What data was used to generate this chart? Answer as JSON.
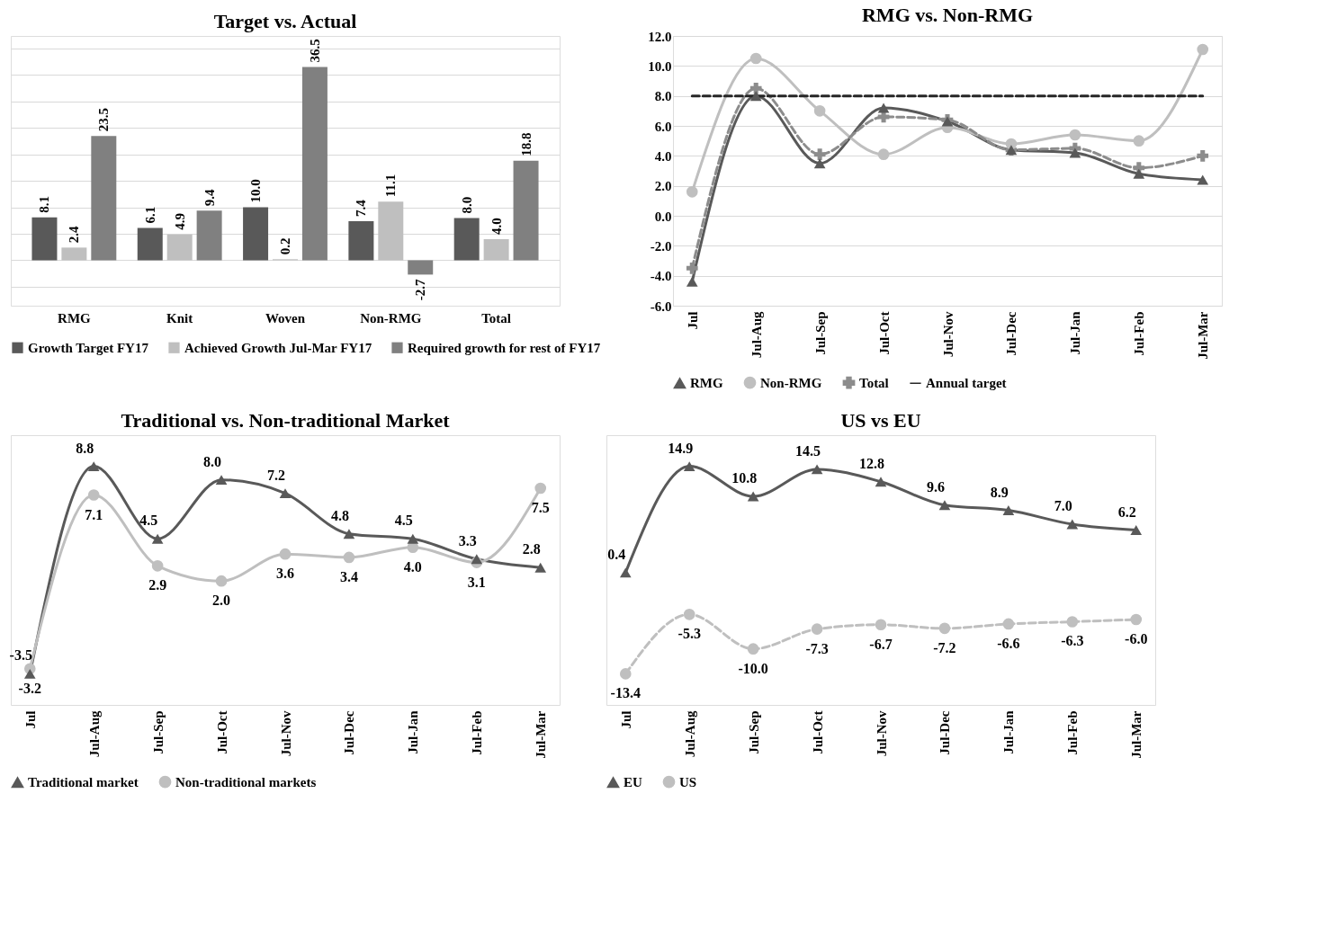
{
  "chart_data": [
    {
      "type": "bar",
      "title": "Target vs. Actual",
      "categories": [
        "RMG",
        "Knit",
        "Woven",
        "Non-RMG",
        "Total"
      ],
      "grid": "y",
      "tick_labels": "x",
      "legend": "bottom",
      "series": [
        {
          "name": "Growth Target FY17",
          "color": "#595959",
          "values": [
            8.1,
            6.1,
            10.0,
            7.4,
            8.0
          ],
          "value_labels": [
            "8.1",
            "6.1",
            "10.0",
            "7.4",
            "8.0"
          ]
        },
        {
          "name": "Achieved Growth Jul-Mar FY17",
          "color": "#bfbfbf",
          "values": [
            2.4,
            4.9,
            0.2,
            11.1,
            4.0
          ],
          "value_labels": [
            "2.4",
            "4.9",
            "0.2",
            "11.1",
            "4.0"
          ]
        },
        {
          "name": "Required growth for rest of FY17",
          "color": "#808080",
          "values": [
            23.5,
            9.4,
            36.5,
            -2.7,
            18.8
          ],
          "value_labels": [
            "23.5",
            "9.4",
            "36.5",
            "-2.7",
            "18.8"
          ]
        }
      ]
    },
    {
      "type": "line",
      "title": "RMG vs. Non-RMG",
      "categories": [
        "Jul",
        "Jul-Aug",
        "Jul-Sep",
        "Jul-Oct",
        "Jul-Nov",
        "Jul-Dec",
        "Jul-Jan",
        "Jul-Feb",
        "Jul-Mar"
      ],
      "grid": "y",
      "legend": "bottom",
      "ylim": [
        -6,
        12
      ],
      "yticks": [
        {
          "value": -6,
          "label": "-6.0"
        },
        {
          "value": -4,
          "label": "-4.0"
        },
        {
          "value": -2,
          "label": "-2.0"
        },
        {
          "value": 0,
          "label": "0.0"
        },
        {
          "value": 2,
          "label": "2.0"
        },
        {
          "value": 4,
          "label": "4.0"
        },
        {
          "value": 6,
          "label": "6.0"
        },
        {
          "value": 8,
          "label": "8.0"
        },
        {
          "value": 10,
          "label": "10.0"
        },
        {
          "value": 12,
          "label": "12.0"
        }
      ],
      "series": [
        {
          "name": "RMG",
          "color": "#595959",
          "marker": "triangle",
          "line_style": "solid",
          "values": [
            -4.4,
            8.0,
            3.5,
            7.2,
            6.3,
            4.4,
            4.2,
            2.8,
            2.4
          ]
        },
        {
          "name": "Non-RMG",
          "color": "#bfbfbf",
          "marker": "circle",
          "line_style": "solid",
          "values": [
            1.6,
            10.5,
            7.0,
            4.1,
            5.9,
            4.8,
            5.4,
            5.0,
            11.1
          ]
        },
        {
          "name": "Total",
          "color": "#8c8c8c",
          "marker": "cross",
          "line_style": "dashed",
          "values": [
            -3.5,
            8.5,
            4.1,
            6.6,
            6.4,
            4.4,
            4.5,
            3.2,
            4.0
          ]
        },
        {
          "name": "Annual target",
          "color": "#262626",
          "marker": "none",
          "line_style": "dashed",
          "values": [
            8,
            8,
            8,
            8,
            8,
            8,
            8,
            8,
            8
          ]
        }
      ]
    },
    {
      "type": "line",
      "title": "Traditional vs. Non-traditional Market",
      "categories": [
        "Jul",
        "Jul-Aug",
        "Jul-Sep",
        "Jul-Oct",
        "Jul-Nov",
        "Jul-Dec",
        "Jul-Jan",
        "Jul-Feb",
        "Jul-Mar"
      ],
      "tick_labels": "x",
      "legend": "bottom",
      "series": [
        {
          "name": "Traditional market",
          "color": "#595959",
          "marker": "triangle",
          "line_style": "solid",
          "values": [
            -3.5,
            8.8,
            4.5,
            8.0,
            7.2,
            4.8,
            4.5,
            3.3,
            2.8
          ],
          "value_labels": [
            "-3.5",
            "8.8",
            "4.5",
            "8.0",
            "7.2",
            "4.8",
            "4.5",
            "3.3",
            "2.8"
          ]
        },
        {
          "name": "Non-traditional markets",
          "color": "#bfbfbf",
          "marker": "circle",
          "line_style": "solid",
          "values": [
            -3.2,
            7.1,
            2.9,
            2.0,
            3.6,
            3.4,
            4.0,
            3.1,
            7.5
          ],
          "value_labels": [
            "-3.2",
            "7.1",
            "2.9",
            "2.0",
            "3.6",
            "3.4",
            "4.0",
            "3.1",
            "7.5"
          ]
        }
      ]
    },
    {
      "type": "line",
      "title": "US vs EU",
      "categories": [
        "Jul",
        "Jul-Aug",
        "Jul-Sep",
        "Jul-Oct",
        "Jul-Nov",
        "Jul-Dec",
        "Jul-Jan",
        "Jul-Feb",
        "Jul-Mar"
      ],
      "tick_labels": "x",
      "legend": "bottom",
      "series": [
        {
          "name": "EU",
          "color": "#595959",
          "marker": "triangle",
          "line_style": "solid",
          "values": [
            0.4,
            14.9,
            10.8,
            14.5,
            12.8,
            9.6,
            8.9,
            7.0,
            6.2
          ],
          "value_labels": [
            "0.4",
            "14.9",
            "10.8",
            "14.5",
            "12.8",
            "9.6",
            "8.9",
            "7.0",
            "6.2"
          ]
        },
        {
          "name": "US",
          "color": "#bfbfbf",
          "marker": "circle",
          "line_style": "dashed",
          "values": [
            -13.4,
            -5.3,
            -10.0,
            -7.3,
            -6.7,
            -7.2,
            -6.6,
            -6.3,
            -6.0
          ],
          "value_labels": [
            "-13.4",
            "-5.3",
            "-10.0",
            "-7.3",
            "-6.7",
            "-7.2",
            "-6.6",
            "-6.3",
            "-6.0"
          ]
        }
      ]
    }
  ]
}
